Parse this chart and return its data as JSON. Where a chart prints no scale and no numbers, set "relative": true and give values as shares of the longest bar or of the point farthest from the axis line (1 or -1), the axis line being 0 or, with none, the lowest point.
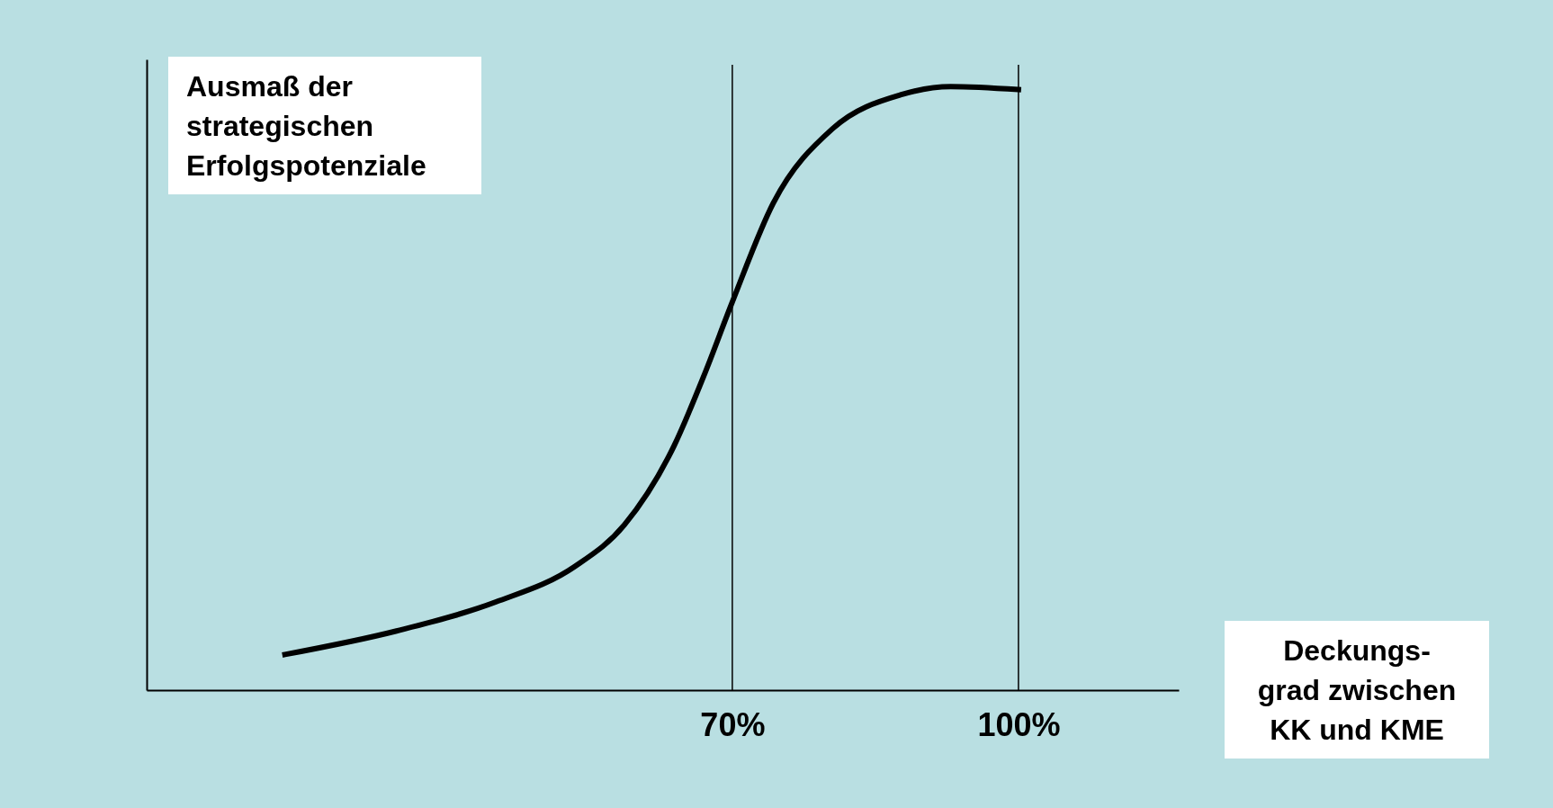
{
  "chart_data": {
    "type": "line",
    "relative": true,
    "xlabel": "Deckungs-\ngrad zwischen\nKK und KME",
    "ylabel": "Ausmaß der\nstrategischen\nErfolgspotenziale",
    "xlim": [
      8.6,
      116.8
    ],
    "xticks": [
      {
        "value": 70,
        "label": "70%"
      },
      {
        "value": 100,
        "label": "100%"
      }
    ],
    "tick_labels": "x",
    "grid": false,
    "series": [
      {
        "color": "#000000",
        "x": [
          23.1,
          34.8,
          45.2,
          53.5,
          58.7,
          63.9,
          67.0,
          70,
          74.3,
          80.5,
          87.8,
          92.9,
          100
        ],
        "values": [
          0.059,
          0.098,
          0.146,
          0.205,
          0.274,
          0.405,
          0.52,
          0.643,
          0.807,
          0.93,
          0.987,
          1.0,
          0.995
        ]
      }
    ],
    "ref_lines": [
      {
        "axis": "x",
        "value": 70,
        "color": "#000000"
      },
      {
        "axis": "x",
        "value": 100,
        "color": "#000000"
      }
    ]
  }
}
